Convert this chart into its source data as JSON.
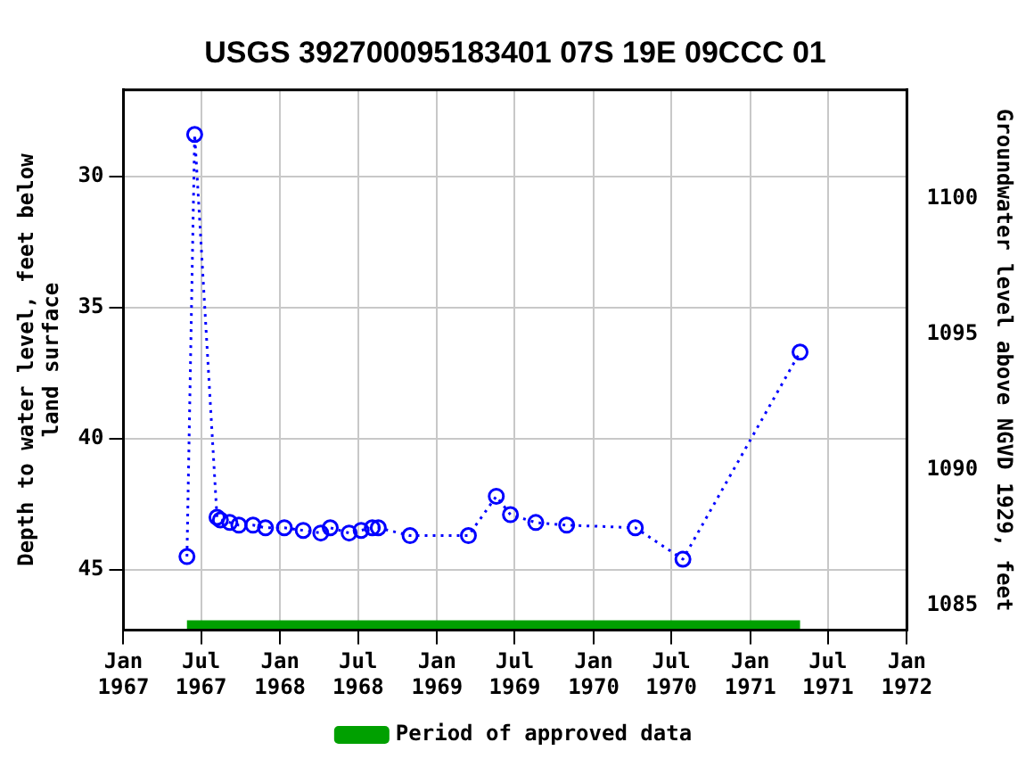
{
  "chart_data": {
    "type": "line",
    "title": "USGS 392700095183401 07S 19E 09CCC 01",
    "ylabel": "Depth to water level, feet below land surface",
    "y2label": "Groundwater level above NGVD 1929, feet",
    "xlim": [
      "1967-01-01",
      "1972-01-01"
    ],
    "xticks": [
      {
        "value": "1967-01-01",
        "label": "Jan 1967"
      },
      {
        "value": "1967-07-01",
        "label": "Jul 1967"
      },
      {
        "value": "1968-01-01",
        "label": "Jan 1968"
      },
      {
        "value": "1968-07-01",
        "label": "Jul 1968"
      },
      {
        "value": "1969-01-01",
        "label": "Jan 1969"
      },
      {
        "value": "1969-07-01",
        "label": "Jul 1969"
      },
      {
        "value": "1970-01-01",
        "label": "Jan 1970"
      },
      {
        "value": "1970-07-01",
        "label": "Jul 1970"
      },
      {
        "value": "1971-01-01",
        "label": "Jan 1971"
      },
      {
        "value": "1971-07-01",
        "label": "Jul 1971"
      },
      {
        "value": "1972-01-01",
        "label": "Jan 1972"
      }
    ],
    "ylim": [
      47.3,
      26.7
    ],
    "yticks": [
      30,
      35,
      40,
      45
    ],
    "y2lim": [
      1084.1,
      1104.0
    ],
    "y2ticks": [
      1085,
      1090,
      1095,
      1100
    ],
    "grid": true,
    "legend": "bottom",
    "series": [
      {
        "color": "#0000ff",
        "marker": "circle",
        "line_style": "dotted",
        "x": [
          "1967-05-29",
          "1967-06-16",
          "1967-08-07",
          "1967-08-15",
          "1967-09-06",
          "1967-09-27",
          "1967-10-30",
          "1967-11-28",
          "1968-01-11",
          "1968-02-24",
          "1968-04-05",
          "1968-04-27",
          "1968-06-10",
          "1968-07-08",
          "1968-08-03",
          "1968-08-17",
          "1968-10-30",
          "1969-03-15",
          "1969-05-19",
          "1969-06-21",
          "1969-08-19",
          "1969-10-30",
          "1970-04-08",
          "1970-07-28",
          "1971-04-27"
        ],
        "values": [
          44.5,
          28.4,
          43.0,
          43.1,
          43.2,
          43.3,
          43.3,
          43.4,
          43.4,
          43.5,
          43.6,
          43.4,
          43.6,
          43.5,
          43.4,
          43.4,
          43.7,
          43.7,
          42.2,
          42.9,
          43.2,
          43.3,
          43.4,
          44.6,
          36.7
        ]
      },
      {
        "name": "Period of approved data",
        "color": "#00a000",
        "marker": "none",
        "line_style": "solid",
        "x": [
          "1967-05-29",
          "1971-04-27"
        ],
        "values": [
          47.1,
          47.1
        ]
      }
    ]
  }
}
